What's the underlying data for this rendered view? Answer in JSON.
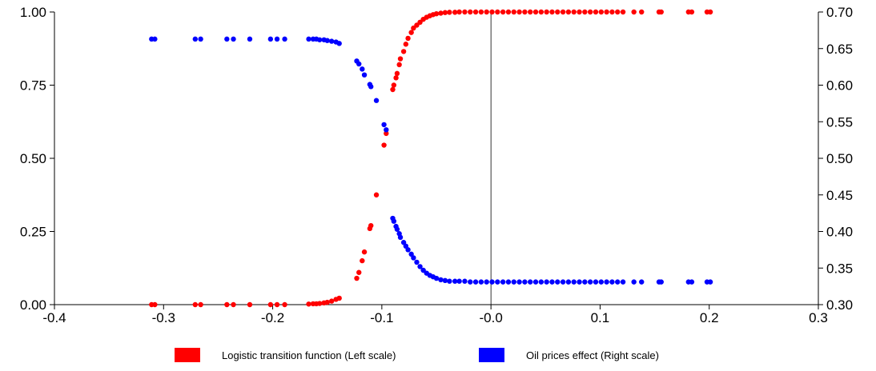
{
  "chart_data": {
    "type": "scatter",
    "title": "",
    "xlabel": "",
    "ylabel": "",
    "xlim": [
      -0.4,
      0.3
    ],
    "ylim": [
      0.0,
      1.0
    ],
    "y2lim": [
      0.3,
      0.7
    ],
    "x_ticks": [
      "-0.4",
      "-0.3",
      "-0.2",
      "-0.1",
      "-0.0",
      "0.1",
      "0.2",
      "0.3"
    ],
    "y_ticks": [
      "0.00",
      "0.25",
      "0.50",
      "0.75",
      "1.00"
    ],
    "y2_ticks": [
      "0.30",
      "0.35",
      "0.40",
      "0.45",
      "0.50",
      "0.55",
      "0.60",
      "0.65",
      "0.70"
    ],
    "reference_line_x": 0.0,
    "grid": false,
    "legend_position": "bottom-center",
    "series": [
      {
        "name": "Logistic transition function (Left scale)",
        "axis": "left",
        "color": "#ff0000",
        "points": [
          [
            -0.311,
            0.0
          ],
          [
            -0.308,
            0.0
          ],
          [
            -0.271,
            0.0
          ],
          [
            -0.266,
            0.0
          ],
          [
            -0.242,
            0.0
          ],
          [
            -0.236,
            0.0
          ],
          [
            -0.221,
            0.0
          ],
          [
            -0.202,
            0.0
          ],
          [
            -0.196,
            0.0
          ],
          [
            -0.189,
            0.0
          ],
          [
            -0.167,
            0.002
          ],
          [
            -0.163,
            0.003
          ],
          [
            -0.16,
            0.003
          ],
          [
            -0.157,
            0.004
          ],
          [
            -0.153,
            0.006
          ],
          [
            -0.15,
            0.008
          ],
          [
            -0.146,
            0.012
          ],
          [
            -0.142,
            0.018
          ],
          [
            -0.139,
            0.022
          ],
          [
            -0.123,
            0.09
          ],
          [
            -0.121,
            0.11
          ],
          [
            -0.118,
            0.15
          ],
          [
            -0.116,
            0.18
          ],
          [
            -0.111,
            0.26
          ],
          [
            -0.11,
            0.27
          ],
          [
            -0.105,
            0.375
          ],
          [
            -0.098,
            0.545
          ],
          [
            -0.096,
            0.585
          ],
          [
            -0.09,
            0.735
          ],
          [
            -0.089,
            0.75
          ],
          [
            -0.087,
            0.775
          ],
          [
            -0.086,
            0.79
          ],
          [
            -0.084,
            0.82
          ],
          [
            -0.083,
            0.84
          ],
          [
            -0.08,
            0.865
          ],
          [
            -0.078,
            0.89
          ],
          [
            -0.076,
            0.91
          ],
          [
            -0.073,
            0.93
          ],
          [
            -0.071,
            0.945
          ],
          [
            -0.068,
            0.955
          ],
          [
            -0.065,
            0.965
          ],
          [
            -0.062,
            0.975
          ],
          [
            -0.059,
            0.982
          ],
          [
            -0.056,
            0.987
          ],
          [
            -0.053,
            0.991
          ],
          [
            -0.05,
            0.994
          ],
          [
            -0.046,
            0.996
          ],
          [
            -0.042,
            0.998
          ],
          [
            -0.038,
            0.999
          ],
          [
            -0.033,
            0.999
          ],
          [
            -0.029,
            1.0
          ],
          [
            -0.024,
            1.0
          ],
          [
            -0.019,
            1.0
          ],
          [
            -0.014,
            1.0
          ],
          [
            -0.009,
            1.0
          ],
          [
            -0.004,
            1.0
          ],
          [
            0.001,
            1.0
          ],
          [
            0.006,
            1.0
          ],
          [
            0.011,
            1.0
          ],
          [
            0.016,
            1.0
          ],
          [
            0.021,
            1.0
          ],
          [
            0.026,
            1.0
          ],
          [
            0.031,
            1.0
          ],
          [
            0.036,
            1.0
          ],
          [
            0.041,
            1.0
          ],
          [
            0.046,
            1.0
          ],
          [
            0.051,
            1.0
          ],
          [
            0.056,
            1.0
          ],
          [
            0.061,
            1.0
          ],
          [
            0.066,
            1.0
          ],
          [
            0.071,
            1.0
          ],
          [
            0.076,
            1.0
          ],
          [
            0.081,
            1.0
          ],
          [
            0.086,
            1.0
          ],
          [
            0.091,
            1.0
          ],
          [
            0.096,
            1.0
          ],
          [
            0.101,
            1.0
          ],
          [
            0.106,
            1.0
          ],
          [
            0.111,
            1.0
          ],
          [
            0.116,
            1.0
          ],
          [
            0.121,
            1.0
          ],
          [
            0.131,
            1.0
          ],
          [
            0.138,
            1.0
          ],
          [
            0.154,
            1.0
          ],
          [
            0.156,
            1.0
          ],
          [
            0.181,
            1.0
          ],
          [
            0.184,
            1.0
          ],
          [
            0.198,
            1.0
          ],
          [
            0.201,
            1.0
          ]
        ]
      },
      {
        "name": "Oil prices effect (Right scale)",
        "axis": "right",
        "color": "#0000ff",
        "points": [
          [
            -0.311,
            0.663
          ],
          [
            -0.308,
            0.663
          ],
          [
            -0.271,
            0.663
          ],
          [
            -0.266,
            0.663
          ],
          [
            -0.242,
            0.663
          ],
          [
            -0.236,
            0.663
          ],
          [
            -0.221,
            0.663
          ],
          [
            -0.202,
            0.663
          ],
          [
            -0.196,
            0.663
          ],
          [
            -0.189,
            0.663
          ],
          [
            -0.167,
            0.663
          ],
          [
            -0.163,
            0.663
          ],
          [
            -0.16,
            0.663
          ],
          [
            -0.157,
            0.662
          ],
          [
            -0.153,
            0.662
          ],
          [
            -0.15,
            0.661
          ],
          [
            -0.146,
            0.66
          ],
          [
            -0.142,
            0.659
          ],
          [
            -0.139,
            0.657
          ],
          [
            -0.123,
            0.633
          ],
          [
            -0.121,
            0.629
          ],
          [
            -0.118,
            0.622
          ],
          [
            -0.116,
            0.614
          ],
          [
            -0.111,
            0.601
          ],
          [
            -0.11,
            0.598
          ],
          [
            -0.105,
            0.579
          ],
          [
            -0.098,
            0.546
          ],
          [
            -0.096,
            0.539
          ],
          [
            -0.09,
            0.418
          ],
          [
            -0.089,
            0.414
          ],
          [
            -0.087,
            0.407
          ],
          [
            -0.086,
            0.403
          ],
          [
            -0.084,
            0.397
          ],
          [
            -0.083,
            0.392
          ],
          [
            -0.08,
            0.385
          ],
          [
            -0.078,
            0.38
          ],
          [
            -0.076,
            0.375
          ],
          [
            -0.073,
            0.369
          ],
          [
            -0.071,
            0.364
          ],
          [
            -0.068,
            0.358
          ],
          [
            -0.065,
            0.352
          ],
          [
            -0.062,
            0.347
          ],
          [
            -0.059,
            0.343
          ],
          [
            -0.056,
            0.34
          ],
          [
            -0.053,
            0.338
          ],
          [
            -0.05,
            0.336
          ],
          [
            -0.046,
            0.334
          ],
          [
            -0.042,
            0.333
          ],
          [
            -0.038,
            0.332
          ],
          [
            -0.033,
            0.332
          ],
          [
            -0.029,
            0.332
          ],
          [
            -0.024,
            0.332
          ],
          [
            -0.019,
            0.331
          ],
          [
            -0.014,
            0.331
          ],
          [
            -0.009,
            0.331
          ],
          [
            -0.004,
            0.331
          ],
          [
            0.001,
            0.331
          ],
          [
            0.006,
            0.331
          ],
          [
            0.011,
            0.331
          ],
          [
            0.016,
            0.331
          ],
          [
            0.021,
            0.331
          ],
          [
            0.026,
            0.331
          ],
          [
            0.031,
            0.331
          ],
          [
            0.036,
            0.331
          ],
          [
            0.041,
            0.331
          ],
          [
            0.046,
            0.331
          ],
          [
            0.051,
            0.331
          ],
          [
            0.056,
            0.331
          ],
          [
            0.061,
            0.331
          ],
          [
            0.066,
            0.331
          ],
          [
            0.071,
            0.331
          ],
          [
            0.076,
            0.331
          ],
          [
            0.081,
            0.331
          ],
          [
            0.086,
            0.331
          ],
          [
            0.091,
            0.331
          ],
          [
            0.096,
            0.331
          ],
          [
            0.101,
            0.331
          ],
          [
            0.106,
            0.331
          ],
          [
            0.111,
            0.331
          ],
          [
            0.116,
            0.331
          ],
          [
            0.121,
            0.331
          ],
          [
            0.131,
            0.331
          ],
          [
            0.138,
            0.331
          ],
          [
            0.154,
            0.331
          ],
          [
            0.156,
            0.331
          ],
          [
            0.181,
            0.331
          ],
          [
            0.184,
            0.331
          ],
          [
            0.198,
            0.331
          ],
          [
            0.201,
            0.331
          ]
        ]
      }
    ]
  }
}
